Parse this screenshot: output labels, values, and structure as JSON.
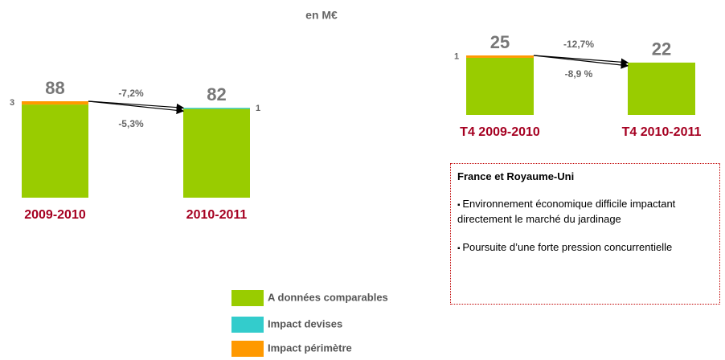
{
  "subtitle": "en M€",
  "chart_data": [
    {
      "type": "bar",
      "stacked": true,
      "categories": [
        "2009-2010",
        "2010-2011"
      ],
      "ylim": [
        0,
        88
      ],
      "totals": [
        88,
        82
      ],
      "series": [
        {
          "name": "A données comparables",
          "color": "#99cc00",
          "values": [
            85,
            81
          ]
        },
        {
          "name": "Impact devises",
          "color": "#33cccc",
          "values": [
            null,
            1
          ]
        },
        {
          "name": "Impact périmètre",
          "color": "#ff9900",
          "values": [
            3,
            null
          ]
        }
      ],
      "changes": {
        "values": [
          -7.2,
          -5.3
        ],
        "value_labels": [
          "-7,2%",
          "-5,3%"
        ]
      }
    },
    {
      "type": "bar",
      "stacked": true,
      "categories": [
        "T4 2009-2010",
        "T4 2010-2011"
      ],
      "ylim": [
        0,
        25
      ],
      "totals": [
        25,
        22
      ],
      "series": [
        {
          "color": "#99cc00",
          "values": [
            24,
            22
          ]
        },
        {
          "color": "#33cccc",
          "values": [
            null,
            null
          ]
        },
        {
          "color": "#ff9900",
          "values": [
            1,
            null
          ]
        }
      ],
      "changes": {
        "values": [
          -12.7,
          -8.9
        ],
        "value_labels": [
          "-12,7%",
          "-8,9 %"
        ]
      }
    }
  ],
  "note": {
    "title": "France et Royaume-Uni",
    "bullets": [
      "Environnement économique difficile impactant directement le marché du jardinage",
      "Poursuite d’une forte pression concurrentielle"
    ]
  }
}
